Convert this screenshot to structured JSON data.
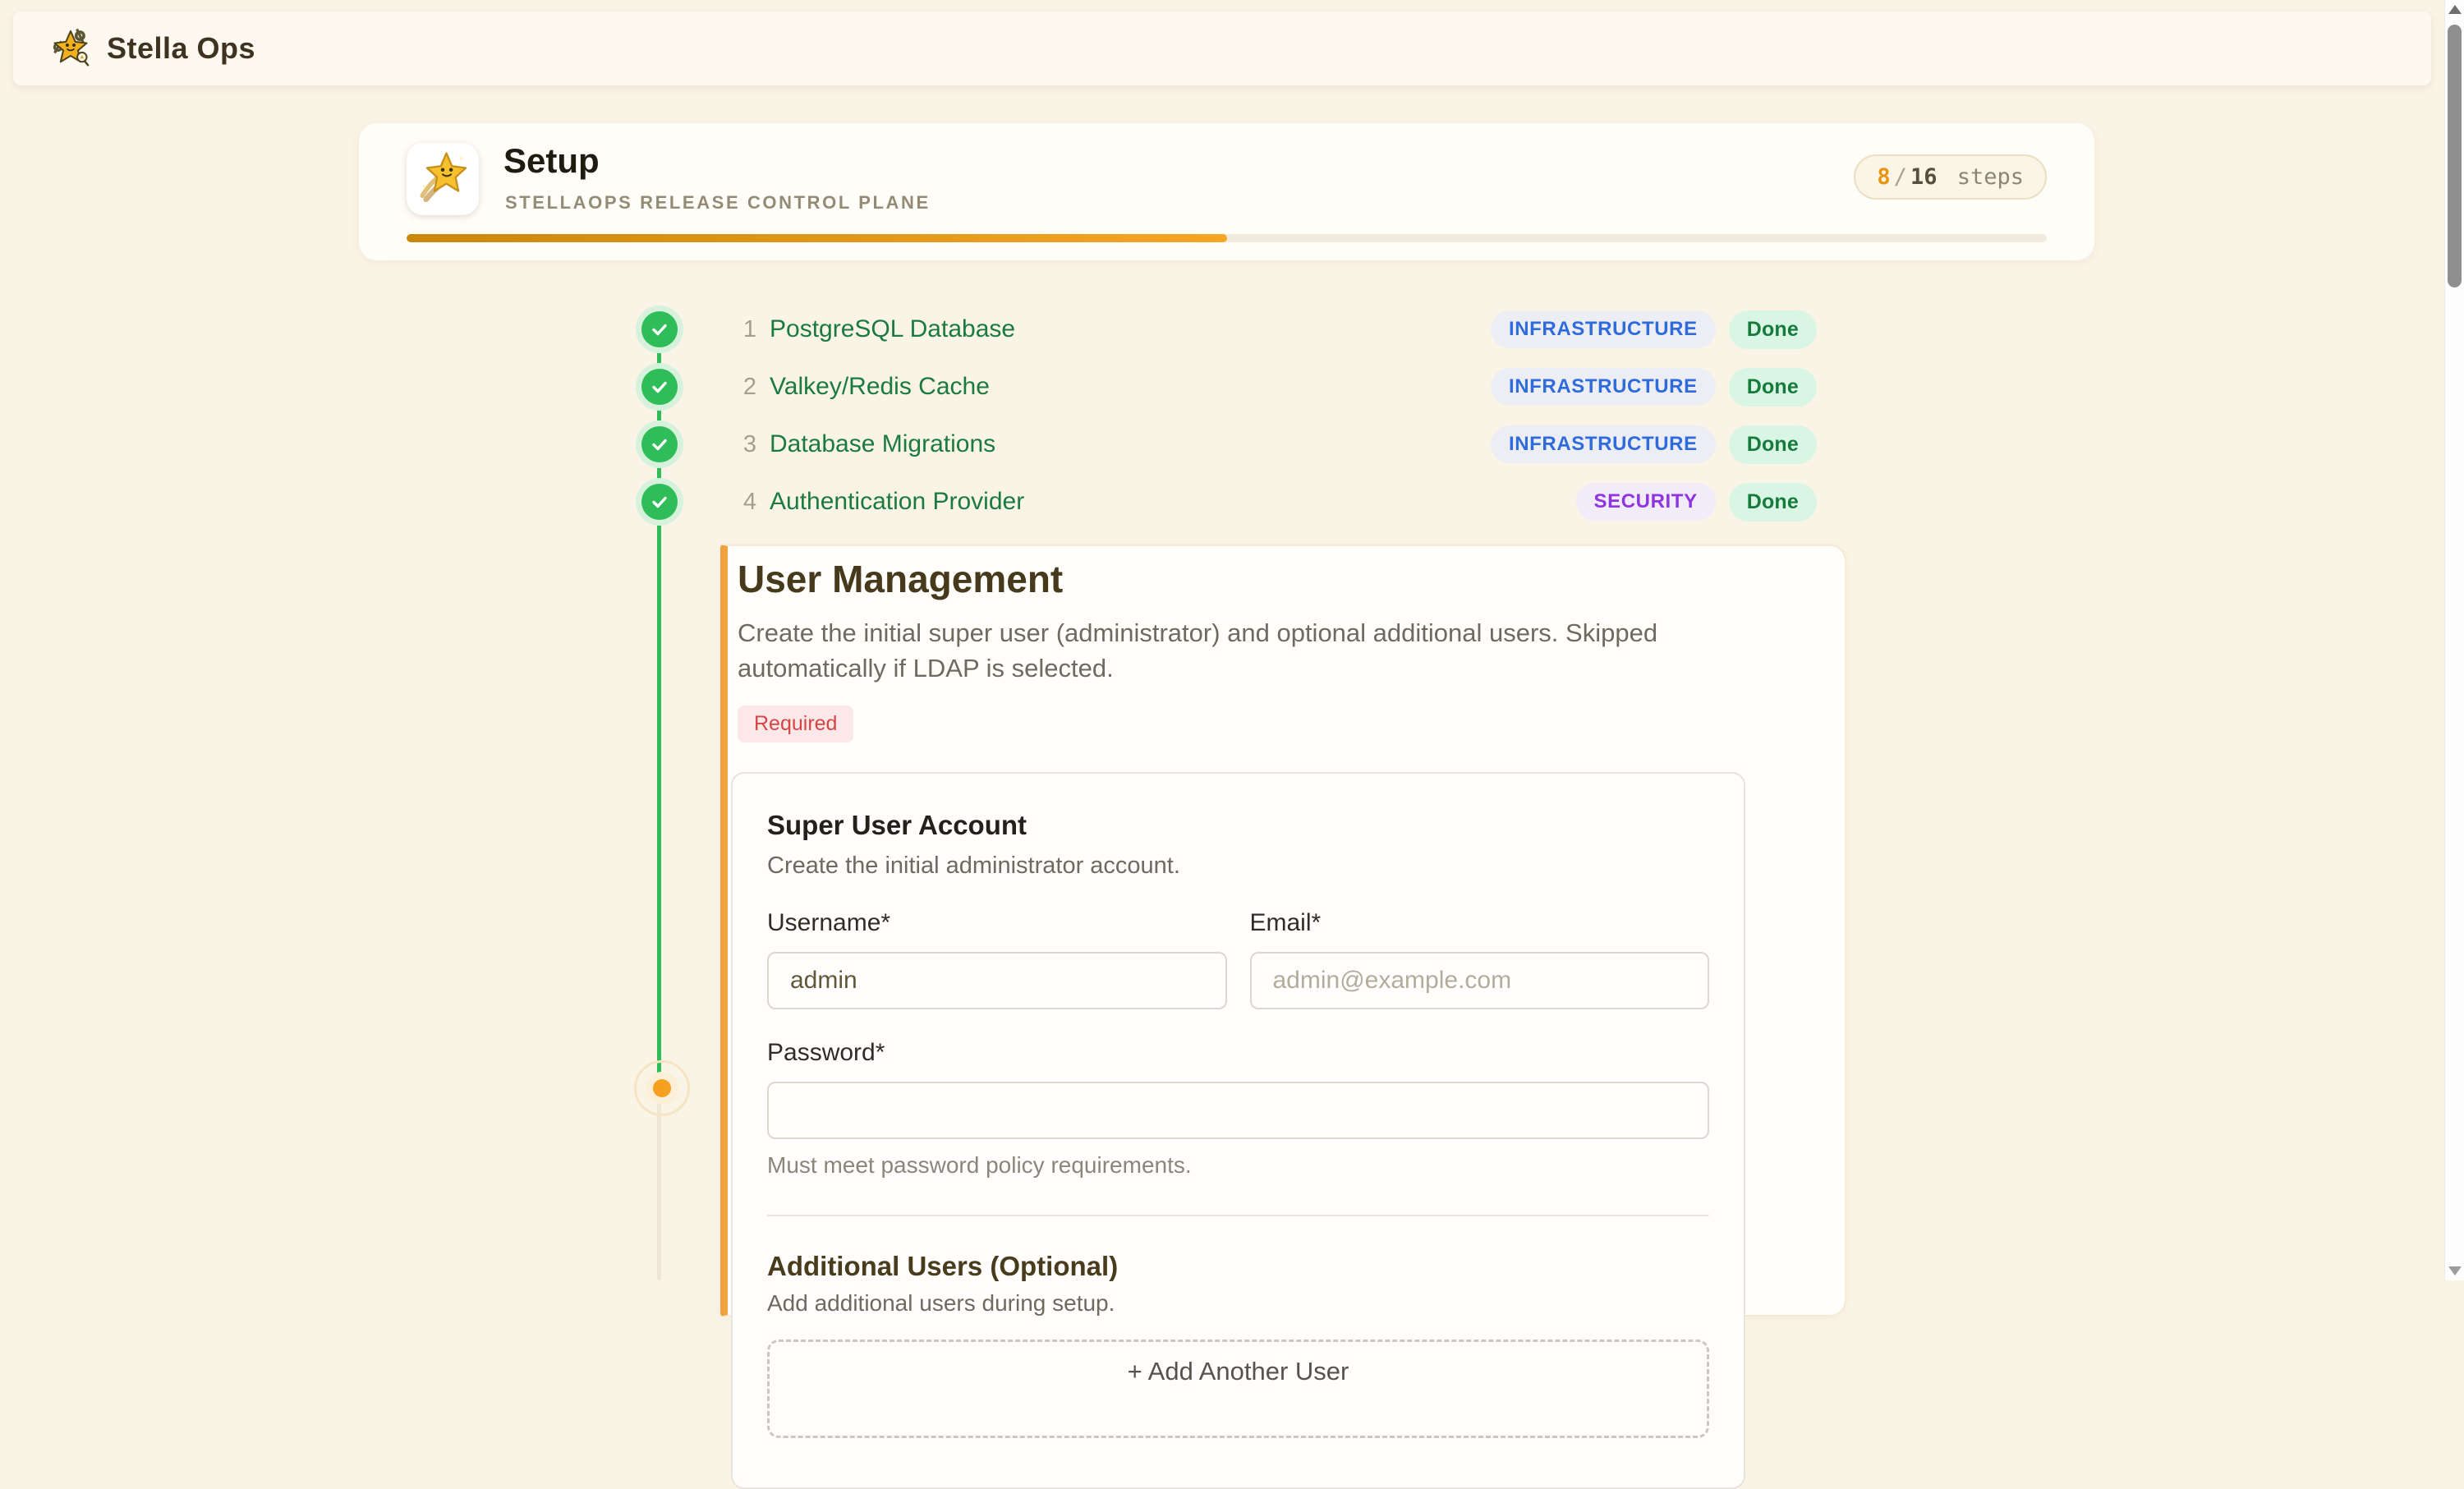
{
  "app": {
    "name": "Stella Ops"
  },
  "setup": {
    "title": "Setup",
    "subtitle": "STELLAOPS RELEASE CONTROL PLANE",
    "steps_done": "8",
    "steps_slash": "/",
    "steps_total": "16",
    "steps_suffix": "steps",
    "progress_percent": 50,
    "progress_fill_colors": [
      "#c9880c",
      "#f5a623"
    ]
  },
  "steps": [
    {
      "number": "1",
      "title": "PostgreSQL Database",
      "category": "INFRASTRUCTURE",
      "category_type": "infrastructure",
      "status": "Done"
    },
    {
      "number": "2",
      "title": "Valkey/Redis Cache",
      "category": "INFRASTRUCTURE",
      "category_type": "infrastructure",
      "status": "Done"
    },
    {
      "number": "3",
      "title": "Database Migrations",
      "category": "INFRASTRUCTURE",
      "category_type": "infrastructure",
      "status": "Done"
    },
    {
      "number": "4",
      "title": "Authentication Provider",
      "category": "SECURITY",
      "category_type": "security",
      "status": "Done"
    }
  ],
  "section": {
    "title": "User Management",
    "description": "Create the initial super user (administrator) and optional additional users. Skipped automatically if LDAP is selected.",
    "required_label": "Required"
  },
  "super_user": {
    "title": "Super User Account",
    "description": "Create the initial administrator account.",
    "username_label": "Username*",
    "username_value": "admin",
    "email_label": "Email*",
    "email_placeholder": "admin@example.com",
    "password_label": "Password*",
    "password_value": "",
    "password_hint": "Must meet password policy requirements."
  },
  "additional_users": {
    "title": "Additional Users (Optional)",
    "description": "Add additional users during setup.",
    "add_button_label": "+ Add Another User"
  },
  "colors": {
    "accent_orange": "#f0a23e",
    "progress_start": "#c9880c",
    "progress_end": "#f5a623",
    "step_green": "#2ebd59",
    "step_title_green": "#1b7a3f",
    "infrastructure_text": "#2f6bdb",
    "security_text": "#8f35e0",
    "done_text": "#167a3c",
    "required_text": "#d64444"
  }
}
